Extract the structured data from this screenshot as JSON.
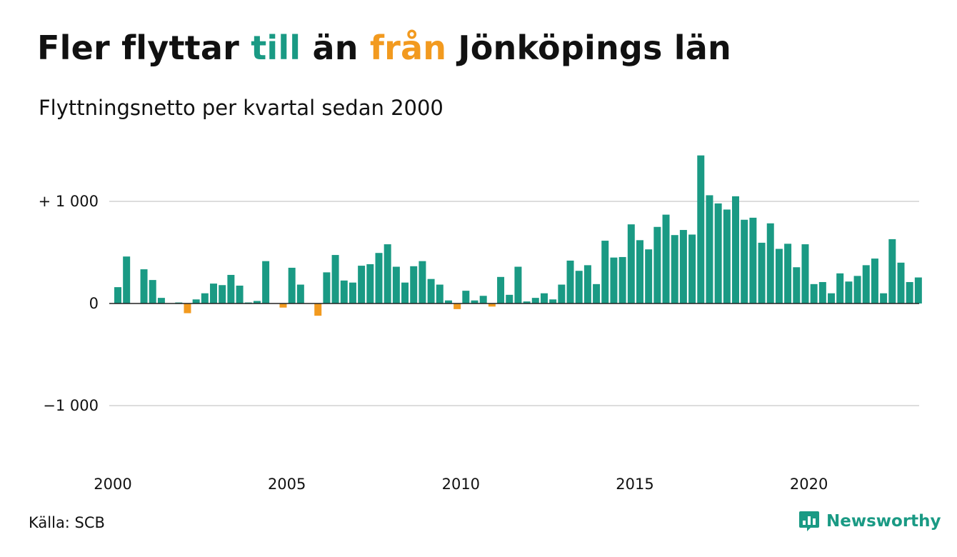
{
  "title_parts": {
    "before": "Fler flyttar ",
    "till": "till",
    "middle": " än ",
    "fran": "från",
    "after": " Jönköpings län"
  },
  "subtitle": "Flyttningsnetto per kvartal sedan 2000",
  "source": "Källa: SCB",
  "brand": {
    "name": "Newsworthy",
    "icon": "newsworthy-logo-icon"
  },
  "colors": {
    "positive": "#1a9a84",
    "negative": "#f29a1f",
    "text": "#111111",
    "grid": "#dddddd",
    "baseline": "#222222"
  },
  "chart_data": {
    "type": "bar",
    "title": "Fler flyttar till än från Jönköpings län",
    "subtitle": "Flyttningsnetto per kvartal sedan 2000",
    "x_start_year": 2000,
    "periods_per_year": 4,
    "x_tick_labels": [
      "2000",
      "2005",
      "2010",
      "2015",
      "2020"
    ],
    "y_ticks": [
      1000,
      0,
      -1000
    ],
    "y_tick_labels": [
      "+ 1 000",
      "0",
      "−1 000"
    ],
    "ylim": [
      -1500,
      1500
    ],
    "grid": true,
    "legend": "none",
    "values": [
      160,
      460,
      0,
      335,
      230,
      55,
      0,
      10,
      -95,
      40,
      100,
      195,
      180,
      280,
      175,
      10,
      25,
      415,
      0,
      -40,
      350,
      185,
      0,
      -120,
      305,
      475,
      225,
      205,
      370,
      385,
      495,
      580,
      360,
      205,
      365,
      415,
      240,
      185,
      30,
      -55,
      125,
      30,
      75,
      -30,
      260,
      85,
      360,
      20,
      55,
      100,
      40,
      185,
      420,
      320,
      375,
      190,
      615,
      450,
      455,
      775,
      620,
      530,
      750,
      870,
      670,
      720,
      675,
      1450,
      1060,
      980,
      920,
      1050,
      820,
      840,
      595,
      785,
      535,
      585,
      355,
      580,
      190,
      210,
      100,
      295,
      215,
      270,
      375,
      440,
      100,
      630,
      400,
      210,
      255
    ]
  }
}
